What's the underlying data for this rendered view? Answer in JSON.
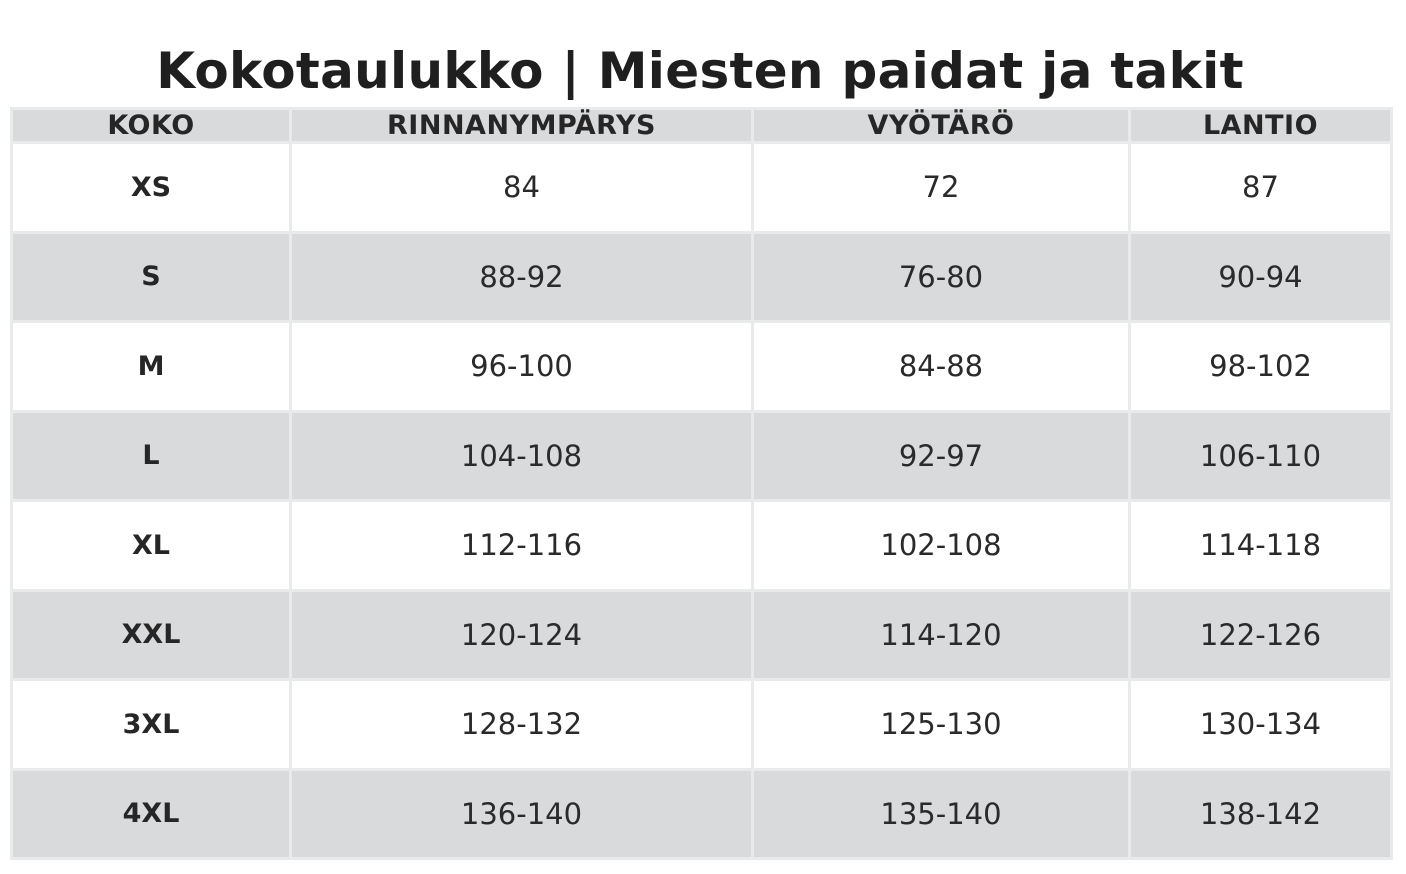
{
  "title": "Kokotaulukko | Miesten paidat ja takit",
  "table": {
    "headers": [
      "KOKO",
      "RINNANYMPÄRYS",
      "VYÖTÄRÖ",
      "LANTIO"
    ],
    "rows": [
      [
        "XS",
        "84",
        "72",
        "87"
      ],
      [
        "S",
        "88-92",
        "76-80",
        "90-94"
      ],
      [
        "M",
        "96-100",
        "84-88",
        "98-102"
      ],
      [
        "L",
        "104-108",
        "92-97",
        "106-110"
      ],
      [
        "XL",
        "112-116",
        "102-108",
        "114-118"
      ],
      [
        "XXL",
        "120-124",
        "114-120",
        "122-126"
      ],
      [
        "3XL",
        "128-132",
        "125-130",
        "130-134"
      ],
      [
        "4XL",
        "136-140",
        "135-140",
        "138-142"
      ]
    ]
  },
  "colors": {
    "header_background": "#d9dadc",
    "row_light": "#ffffff",
    "row_dark": "#d9dadc",
    "grid": "#e9eaeb",
    "text": "#1f1f1f"
  }
}
